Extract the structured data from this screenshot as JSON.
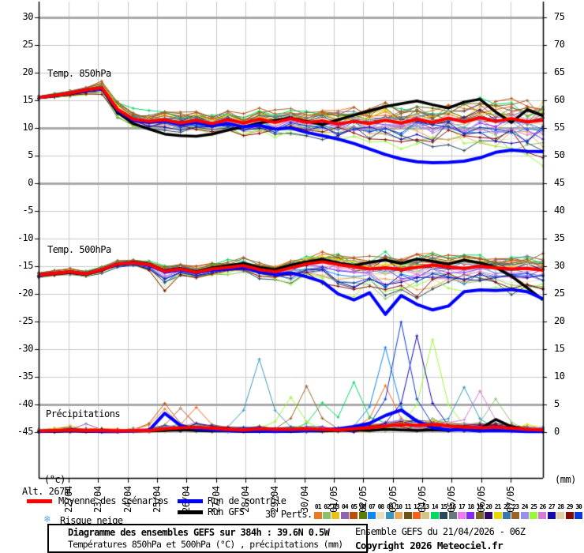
{
  "panels": {
    "temp850_label": "Temp. 850hPa",
    "temp500_label": "Temp. 500hPa",
    "precip_label": "Précipitations"
  },
  "axes": {
    "left_unit": "(°c)",
    "right_unit": "(mm)",
    "altitude": "Alt. 267m",
    "left_labels": [
      "30",
      "25",
      "20",
      "15",
      "10",
      "5",
      "0",
      "-5",
      "-10",
      "-15",
      "-20",
      "-25",
      "-30",
      "-35",
      "-40",
      "-45"
    ],
    "right_labels": [
      "75",
      "70",
      "65",
      "60",
      "55",
      "50",
      "45",
      "40",
      "35",
      "30",
      "25",
      "20",
      "15",
      "10",
      "5",
      "0"
    ],
    "dates": [
      "22/04",
      "23/04",
      "24/04",
      "25/04",
      "26/04",
      "27/04",
      "28/04",
      "29/04",
      "30/04",
      "01/05",
      "02/05",
      "03/05",
      "04/05",
      "05/05",
      "06/05",
      "07/05"
    ]
  },
  "legend": {
    "mean_label": "Moyenne des scénarios",
    "control_label": "Run de contrôle",
    "gfs_label": "Run GFS",
    "perts_label": "30 Perts.",
    "snow_label": "Risque neige",
    "snow_icon": "❄",
    "mean_color": "#ff0000",
    "control_color": "#0000ff",
    "gfs_color": "#000000"
  },
  "members": [
    {
      "n": "01",
      "c": "#e87c24"
    },
    {
      "n": "02",
      "c": "#8cc06c"
    },
    {
      "n": "03",
      "c": "#e8c020"
    },
    {
      "n": "04",
      "c": "#8c64b0"
    },
    {
      "n": "05",
      "c": "#bc5008"
    },
    {
      "n": "06",
      "c": "#5c7c04"
    },
    {
      "n": "07",
      "c": "#0c88f0"
    },
    {
      "n": "08",
      "c": "#e8e0c0"
    },
    {
      "n": "09",
      "c": "#3898c0"
    },
    {
      "n": "10",
      "c": "#e8a858"
    },
    {
      "n": "11",
      "c": "#6b5418"
    },
    {
      "n": "12",
      "c": "#f86018"
    },
    {
      "n": "13",
      "c": "#d4c488"
    },
    {
      "n": "14",
      "c": "#00d860"
    },
    {
      "n": "15",
      "c": "#28485c"
    },
    {
      "n": "16",
      "c": "#68787c"
    },
    {
      "n": "17",
      "c": "#f078f0"
    },
    {
      "n": "18",
      "c": "#8428f8"
    },
    {
      "n": "19",
      "c": "#7c6428"
    },
    {
      "n": "20",
      "c": "#300868"
    },
    {
      "n": "21",
      "c": "#e8d800"
    },
    {
      "n": "22",
      "c": "#3878a8"
    },
    {
      "n": "23",
      "c": "#98642c"
    },
    {
      "n": "24",
      "c": "#9890e8"
    },
    {
      "n": "25",
      "c": "#98f838"
    },
    {
      "n": "26",
      "c": "#d878d8"
    },
    {
      "n": "27",
      "c": "#1808a8"
    },
    {
      "n": "28",
      "c": "#e0d0a8"
    },
    {
      "n": "29",
      "c": "#880808"
    },
    {
      "n": "30",
      "c": "#0838d8"
    }
  ],
  "footer": {
    "title": "Diagramme des ensembles GEFS sur 384h : 39.6N 0.5W",
    "subtitle": "Températures 850hPa et 500hPa (°C) , précipitations (mm)",
    "run_info": "Ensemble GEFS du 21/04/2026 - 06Z",
    "copyright": "Copyright 2026 Meteociel.fr"
  },
  "chart_data": [
    {
      "type": "line",
      "id": "temp850",
      "title": "Temp. 850hPa",
      "ylabel": "°C",
      "x_hours_step": 12,
      "x_start": "21/04 06Z",
      "series": [
        {
          "name": "Moyenne des scénarios",
          "values": [
            15.5,
            15.9,
            16.3,
            16.9,
            17.3,
            13.4,
            11.6,
            11.2,
            11.5,
            10.9,
            11.4,
            10.8,
            11.5,
            10.9,
            11.6,
            11.0,
            11.7,
            11.0,
            11.3,
            10.7,
            11.2,
            10.8,
            11.4,
            10.9,
            11.6,
            11.0,
            11.8,
            11.1,
            11.9,
            11.2,
            11.7,
            11.1,
            11.4
          ]
        },
        {
          "name": "Run de contrôle",
          "values": [
            15.5,
            15.9,
            16.3,
            16.9,
            17.2,
            13.2,
            11.4,
            11.0,
            11.3,
            10.6,
            11.0,
            10.4,
            10.8,
            10.2,
            10.5,
            9.8,
            10.0,
            9.2,
            8.6,
            8.0,
            7.2,
            6.2,
            5.2,
            4.4,
            3.9,
            3.7,
            3.8,
            4.0,
            4.6,
            5.6,
            6.0,
            5.8,
            5.7
          ]
        },
        {
          "name": "Run GFS",
          "values": [
            15.5,
            15.8,
            16.2,
            16.8,
            17.2,
            12.8,
            10.8,
            9.8,
            8.9,
            8.6,
            8.5,
            8.9,
            9.6,
            10.2,
            10.9,
            11.4,
            11.8,
            11.2,
            10.6,
            11.5,
            12.3,
            13.1,
            13.9,
            14.4,
            14.9,
            14.2,
            13.6,
            14.7,
            15.2,
            12.9,
            11.0,
            13.3,
            12.2
          ]
        }
      ],
      "envelope": {
        "min": [
          15.2,
          15.4,
          15.6,
          15.9,
          16.0,
          11.0,
          9.6,
          9.3,
          9.5,
          8.9,
          9.2,
          8.4,
          8.8,
          8.2,
          8.6,
          8.0,
          8.3,
          7.6,
          7.9,
          7.2,
          7.6,
          6.8,
          7.1,
          6.2,
          5.9,
          5.4,
          5.0,
          4.6,
          4.8,
          4.4,
          3.8,
          3.0,
          2.4
        ],
        "max": [
          15.9,
          16.3,
          16.8,
          17.6,
          18.6,
          15.0,
          13.6,
          13.2,
          13.8,
          13.1,
          13.6,
          12.9,
          13.4,
          13.0,
          13.8,
          13.3,
          14.0,
          13.5,
          14.2,
          13.6,
          14.4,
          13.8,
          14.6,
          14.0,
          14.8,
          14.3,
          15.2,
          14.6,
          15.6,
          15.0,
          16.2,
          15.8,
          16.5
        ]
      }
    },
    {
      "type": "line",
      "id": "temp500",
      "title": "Temp. 500hPa",
      "ylabel": "°C",
      "x_hours_step": 12,
      "x_start": "21/04 06Z",
      "series": [
        {
          "name": "Moyenne des scénarios",
          "values": [
            -16.6,
            -16.3,
            -16.0,
            -16.4,
            -15.6,
            -14.6,
            -14.4,
            -14.7,
            -15.9,
            -15.5,
            -16.1,
            -15.5,
            -15.2,
            -14.9,
            -15.6,
            -16.0,
            -15.3,
            -14.6,
            -14.2,
            -14.7,
            -15.1,
            -15.5,
            -15.3,
            -15.6,
            -15.2,
            -14.8,
            -15.1,
            -15.4,
            -15.0,
            -15.3,
            -15.5,
            -15.4,
            -15.7
          ]
        },
        {
          "name": "Run de contrôle",
          "values": [
            -16.6,
            -16.3,
            -16.0,
            -16.4,
            -15.6,
            -14.6,
            -14.4,
            -14.8,
            -16.0,
            -15.6,
            -16.2,
            -15.7,
            -15.5,
            -15.3,
            -16.0,
            -16.5,
            -16.2,
            -16.9,
            -17.8,
            -20.0,
            -21.1,
            -19.8,
            -23.7,
            -20.3,
            -21.9,
            -22.9,
            -22.2,
            -19.6,
            -19.3,
            -19.4,
            -19.2,
            -19.6,
            -20.9
          ]
        },
        {
          "name": "Run GFS",
          "values": [
            -16.6,
            -16.3,
            -16.1,
            -16.5,
            -15.7,
            -14.7,
            -14.3,
            -14.6,
            -15.8,
            -15.4,
            -16.0,
            -15.3,
            -14.9,
            -14.5,
            -15.2,
            -15.6,
            -14.8,
            -14.2,
            -13.8,
            -14.4,
            -14.9,
            -14.3,
            -13.9,
            -14.5,
            -13.7,
            -14.1,
            -14.6,
            -13.9,
            -14.4,
            -15.2,
            -16.8,
            -18.9,
            -21.1
          ]
        }
      ],
      "envelope": {
        "min": [
          -17.2,
          -16.9,
          -16.6,
          -17.0,
          -16.3,
          -15.4,
          -15.2,
          -16.2,
          -20.0,
          -17.0,
          -17.6,
          -16.9,
          -16.6,
          -16.4,
          -17.4,
          -18.2,
          -19.8,
          -18.6,
          -19.2,
          -20.2,
          -21.2,
          -20.0,
          -23.8,
          -21.0,
          -22.6,
          -21.2,
          -20.0,
          -20.6,
          -19.4,
          -19.8,
          -20.4,
          -19.6,
          -20.6
        ],
        "max": [
          -16.0,
          -15.7,
          -15.4,
          -15.7,
          -14.9,
          -13.8,
          -13.6,
          -13.9,
          -14.8,
          -14.4,
          -14.9,
          -14.2,
          -13.8,
          -13.4,
          -14.2,
          -14.6,
          -13.8,
          -13.0,
          -12.4,
          -12.8,
          -13.2,
          -12.6,
          -12.2,
          -12.8,
          -12.1,
          -12.4,
          -12.8,
          -12.2,
          -12.6,
          -12.9,
          -12.4,
          -12.2,
          -12.6
        ]
      }
    },
    {
      "type": "line",
      "id": "precip",
      "title": "Précipitations",
      "ylabel": "mm",
      "x_hours_step": 12,
      "x_start": "21/04 06Z",
      "series": [
        {
          "name": "Moyenne des scénarios",
          "values": [
            0.2,
            0.3,
            0.4,
            0.3,
            0.3,
            0.2,
            0.3,
            0.3,
            0.6,
            0.8,
            0.9,
            0.7,
            0.5,
            0.4,
            0.6,
            0.5,
            0.5,
            0.6,
            0.5,
            0.4,
            0.6,
            0.8,
            1.1,
            1.4,
            1.2,
            1.4,
            1.1,
            0.9,
            0.8,
            0.9,
            0.7,
            0.5,
            0.4
          ]
        },
        {
          "name": "Run de contrôle",
          "values": [
            0.1,
            0.2,
            0.4,
            0.2,
            0.1,
            0.1,
            0.2,
            0.3,
            3.4,
            1.2,
            0.6,
            0.4,
            0.3,
            0.2,
            0.2,
            0.1,
            0.2,
            0.3,
            0.4,
            0.6,
            1.0,
            1.6,
            3.0,
            4.0,
            2.0,
            0.8,
            0.4,
            0.4,
            0.2,
            0.3,
            0.2,
            0.1,
            0.1
          ]
        },
        {
          "name": "Run GFS",
          "values": [
            0.1,
            0.1,
            0.2,
            0.1,
            0.1,
            0.1,
            0.2,
            0.2,
            0.3,
            0.4,
            0.3,
            0.2,
            0.2,
            0.1,
            0.1,
            0.1,
            0.1,
            0.2,
            0.2,
            0.3,
            0.4,
            0.3,
            0.5,
            0.4,
            0.3,
            0.4,
            0.3,
            0.5,
            0.6,
            2.3,
            1.0,
            0.4,
            0.2
          ]
        }
      ],
      "member_spikes": [
        {
          "m": 3,
          "t": 2,
          "v": 1.2
        },
        {
          "m": 4,
          "t": 3,
          "v": 1.5
        },
        {
          "m": 1,
          "t": 8,
          "v": 4.2
        },
        {
          "m": 5,
          "t": 8,
          "v": 5.2
        },
        {
          "m": 4,
          "t": 9,
          "v": 4.3
        },
        {
          "m": 10,
          "t": 9,
          "v": 4.4
        },
        {
          "m": 12,
          "t": 10,
          "v": 4.5
        },
        {
          "m": 9,
          "t": 14,
          "v": 13.2
        },
        {
          "m": 25,
          "t": 16,
          "v": 6.3
        },
        {
          "m": 23,
          "t": 17,
          "v": 8.3
        },
        {
          "m": 14,
          "t": 18,
          "v": 5.3
        },
        {
          "m": 14,
          "t": 20,
          "v": 9.0
        },
        {
          "m": 7,
          "t": 22,
          "v": 15.3
        },
        {
          "m": 12,
          "t": 22,
          "v": 8.4
        },
        {
          "m": 30,
          "t": 23,
          "v": 19.9
        },
        {
          "m": 27,
          "t": 24,
          "v": 17.4
        },
        {
          "m": 25,
          "t": 25,
          "v": 16.7
        },
        {
          "m": 9,
          "t": 27,
          "v": 8.1
        },
        {
          "m": 26,
          "t": 28,
          "v": 7.4
        },
        {
          "m": 2,
          "t": 29,
          "v": 6.0
        },
        {
          "m": 21,
          "t": 31,
          "v": 1.4
        }
      ]
    }
  ]
}
